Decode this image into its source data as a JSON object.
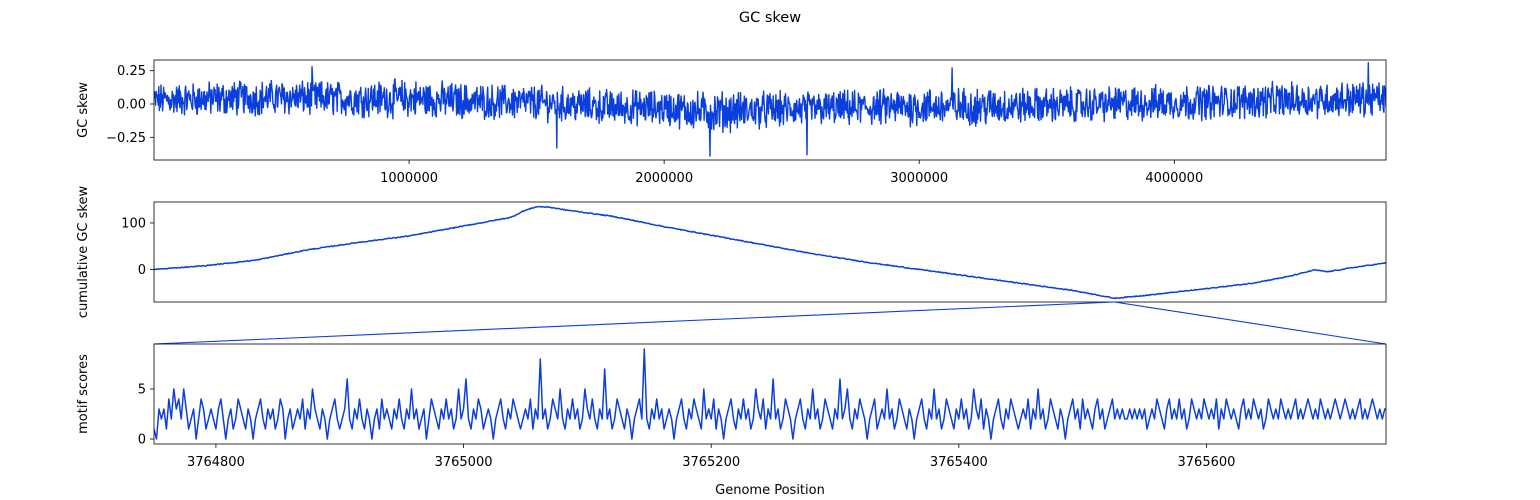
{
  "figure": {
    "title": "GC skew",
    "xlabel": "Genome Position",
    "line_color": "#0b3fdc"
  },
  "chart_data": [
    {
      "type": "line",
      "name": "gc-skew",
      "ylabel": "GC skew",
      "xlim": [
        0,
        4830000
      ],
      "ylim": [
        -0.42,
        0.33
      ],
      "xticks": [
        1000000,
        2000000,
        3000000,
        4000000
      ],
      "xtick_labels": [
        "1000000",
        "2000000",
        "3000000",
        "4000000"
      ],
      "yticks": [
        0.25,
        0.0,
        -0.25
      ],
      "ytick_labels": [
        "0.25",
        "0.00",
        "−0.25"
      ],
      "series": [
        {
          "x": [
            0,
            250000,
            500000,
            750000,
            1000000,
            1250000,
            1500000,
            1750000,
            2000000,
            2100000,
            2200000,
            2300000,
            2500000,
            2750000,
            3000000,
            3250000,
            3500000,
            3750000,
            4000000,
            4250000,
            4500000,
            4750000,
            4830000
          ],
          "y": [
            0.03,
            0.04,
            0.05,
            0.04,
            0.04,
            0.02,
            0.01,
            -0.02,
            -0.03,
            -0.05,
            -0.06,
            -0.05,
            -0.04,
            -0.03,
            -0.02,
            -0.02,
            -0.01,
            0.0,
            0.01,
            0.02,
            0.03,
            0.04,
            0.04
          ],
          "band": [
            0.1,
            0.11,
            0.11,
            0.11,
            0.12,
            0.11,
            0.11,
            0.11,
            0.11,
            0.12,
            0.13,
            0.12,
            0.11,
            0.11,
            0.12,
            0.12,
            0.11,
            0.11,
            0.11,
            0.11,
            0.11,
            0.11,
            0.11
          ]
        }
      ],
      "peaks": [
        [
          620000,
          0.28
        ],
        [
          1580000,
          -0.33
        ],
        [
          2180000,
          -0.39
        ],
        [
          2560000,
          -0.38
        ],
        [
          3130000,
          0.27
        ],
        [
          4760000,
          0.31
        ]
      ]
    },
    {
      "type": "line",
      "name": "cumulative-gc-skew",
      "ylabel": "cumulative GC skew",
      "xlim": [
        0,
        4830000
      ],
      "ylim": [
        -70,
        145
      ],
      "yticks": [
        100,
        0
      ],
      "ytick_labels": [
        "100",
        "0"
      ],
      "series": [
        {
          "x": [
            0,
            200000,
            400000,
            600000,
            800000,
            1000000,
            1200000,
            1400000,
            1450000,
            1500000,
            1550000,
            1600000,
            1800000,
            2000000,
            2200000,
            2400000,
            2600000,
            2800000,
            3000000,
            3200000,
            3400000,
            3600000,
            3700000,
            3765000,
            3900000,
            4100000,
            4300000,
            4450000,
            4550000,
            4600000,
            4700000,
            4830000
          ],
          "y": [
            0,
            8,
            20,
            42,
            58,
            72,
            92,
            112,
            126,
            135,
            134,
            129,
            114,
            92,
            72,
            52,
            32,
            15,
            0,
            -15,
            -30,
            -45,
            -55,
            -62,
            -55,
            -43,
            -30,
            -15,
            -1,
            -5,
            4,
            14
          ]
        }
      ],
      "min_point": [
        3765000,
        -62
      ]
    },
    {
      "type": "line",
      "name": "motif-scores",
      "ylabel": "motif scores",
      "xlim": [
        3764750,
        3765745
      ],
      "ylim": [
        -0.5,
        9.5
      ],
      "xticks": [
        3764800,
        3765000,
        3765200,
        3765400,
        3765600
      ],
      "xtick_labels": [
        "3764800",
        "3765000",
        "3765200",
        "3765400",
        "3765600"
      ],
      "yticks": [
        5,
        0
      ],
      "ytick_labels": [
        "5",
        "0"
      ],
      "series": [
        {
          "x_start": 3764750,
          "x_step": 2,
          "values": [
            1,
            0,
            3,
            2,
            3,
            1,
            4,
            2,
            5,
            3,
            4,
            2,
            5,
            3,
            1,
            2,
            3,
            0,
            2,
            4,
            3,
            1,
            2,
            3,
            2,
            1,
            3,
            4,
            2,
            0,
            2,
            3,
            1,
            2,
            4,
            3,
            2,
            1,
            3,
            2,
            0,
            2,
            3,
            4,
            2,
            1,
            3,
            2,
            3,
            1,
            2,
            4,
            3,
            0,
            2,
            3,
            1,
            2,
            3,
            2,
            4,
            1,
            3,
            2,
            5,
            3,
            2,
            1,
            3,
            2,
            0,
            2,
            3,
            4,
            2,
            1,
            2,
            3,
            6,
            2,
            1,
            3,
            2,
            4,
            2,
            1,
            3,
            2,
            0,
            2,
            3,
            1,
            4,
            2,
            3,
            2,
            1,
            3,
            2,
            4,
            2,
            1,
            3,
            2,
            5,
            2,
            3,
            1,
            2,
            3,
            0,
            2,
            4,
            3,
            2,
            1,
            3,
            2,
            4,
            2,
            3,
            1,
            2,
            5,
            2,
            3,
            6,
            2,
            1,
            3,
            2,
            4,
            3,
            1,
            2,
            3,
            2,
            0,
            2,
            3,
            4,
            2,
            1,
            3,
            2,
            4,
            3,
            2,
            1,
            2,
            3,
            2,
            4,
            1,
            3,
            2,
            8,
            2,
            3,
            1,
            2,
            4,
            3,
            2,
            5,
            2,
            1,
            3,
            2,
            4,
            2,
            3,
            1,
            2,
            5,
            3,
            2,
            4,
            2,
            1,
            3,
            2,
            7,
            2,
            3,
            1,
            2,
            4,
            3,
            2,
            1,
            3,
            2,
            0,
            2,
            3,
            4,
            2,
            9,
            2,
            1,
            3,
            2,
            4,
            2,
            3,
            1,
            2,
            3,
            2,
            0,
            2,
            3,
            4,
            2,
            1,
            3,
            2,
            4,
            3,
            2,
            1,
            5,
            2,
            3,
            2,
            4,
            1,
            3,
            2,
            0,
            2,
            3,
            4,
            2,
            1,
            3,
            2,
            4,
            2,
            3,
            1,
            2,
            5,
            3,
            2,
            4,
            1,
            3,
            2,
            6,
            2,
            3,
            1,
            2,
            4,
            3,
            2,
            0,
            2,
            3,
            4,
            2,
            1,
            3,
            2,
            5,
            2,
            3,
            1,
            2,
            4,
            3,
            2,
            1,
            3,
            2,
            6,
            2,
            3,
            5,
            2,
            1,
            3,
            2,
            4,
            3,
            2,
            0,
            2,
            3,
            4,
            1,
            2,
            3,
            2,
            5,
            2,
            3,
            1,
            2,
            4,
            3,
            2,
            1,
            3,
            2,
            0,
            2,
            3,
            4,
            2,
            1,
            3,
            2,
            5,
            2,
            3,
            1,
            2,
            4,
            3,
            2,
            1,
            3,
            2,
            4,
            2,
            3,
            1,
            2,
            5,
            3,
            2,
            4,
            1,
            3,
            2,
            0,
            2,
            3,
            4,
            2,
            1,
            3,
            2,
            4,
            3,
            2,
            1,
            2,
            3,
            2,
            4,
            1,
            3,
            2,
            5,
            2,
            3,
            1,
            2,
            4,
            3,
            2,
            1,
            3,
            2,
            0,
            2,
            3,
            4,
            2,
            3,
            1,
            4,
            2,
            3,
            2,
            1,
            3,
            4,
            2,
            3,
            1,
            2,
            3,
            4,
            2,
            3,
            2,
            3,
            2,
            2,
            3,
            2,
            3,
            2,
            3,
            2,
            3,
            1,
            2,
            3,
            2,
            4,
            3,
            2,
            1,
            3,
            4,
            2,
            3,
            2,
            4,
            2,
            3,
            1,
            2,
            4,
            3,
            2,
            3,
            2,
            4,
            3,
            2,
            3,
            2,
            4,
            1,
            3,
            2,
            4,
            3,
            2,
            3,
            2,
            1,
            3,
            4,
            2,
            3,
            2,
            4,
            3,
            2,
            3,
            1,
            2,
            4,
            3,
            2,
            3,
            2,
            4,
            3,
            2,
            3,
            2,
            3,
            4,
            2,
            3,
            2,
            3,
            4,
            3,
            2,
            3,
            2,
            4,
            3,
            2,
            3,
            2,
            3,
            4,
            3,
            2,
            3,
            4,
            3,
            2,
            3,
            2,
            3,
            4,
            2,
            3,
            2,
            3,
            4,
            3,
            2,
            3,
            2,
            3,
            3,
            2,
            3,
            3
          ]
        }
      ]
    }
  ],
  "zoom": {
    "x_range": [
      3764750,
      3765745
    ]
  }
}
